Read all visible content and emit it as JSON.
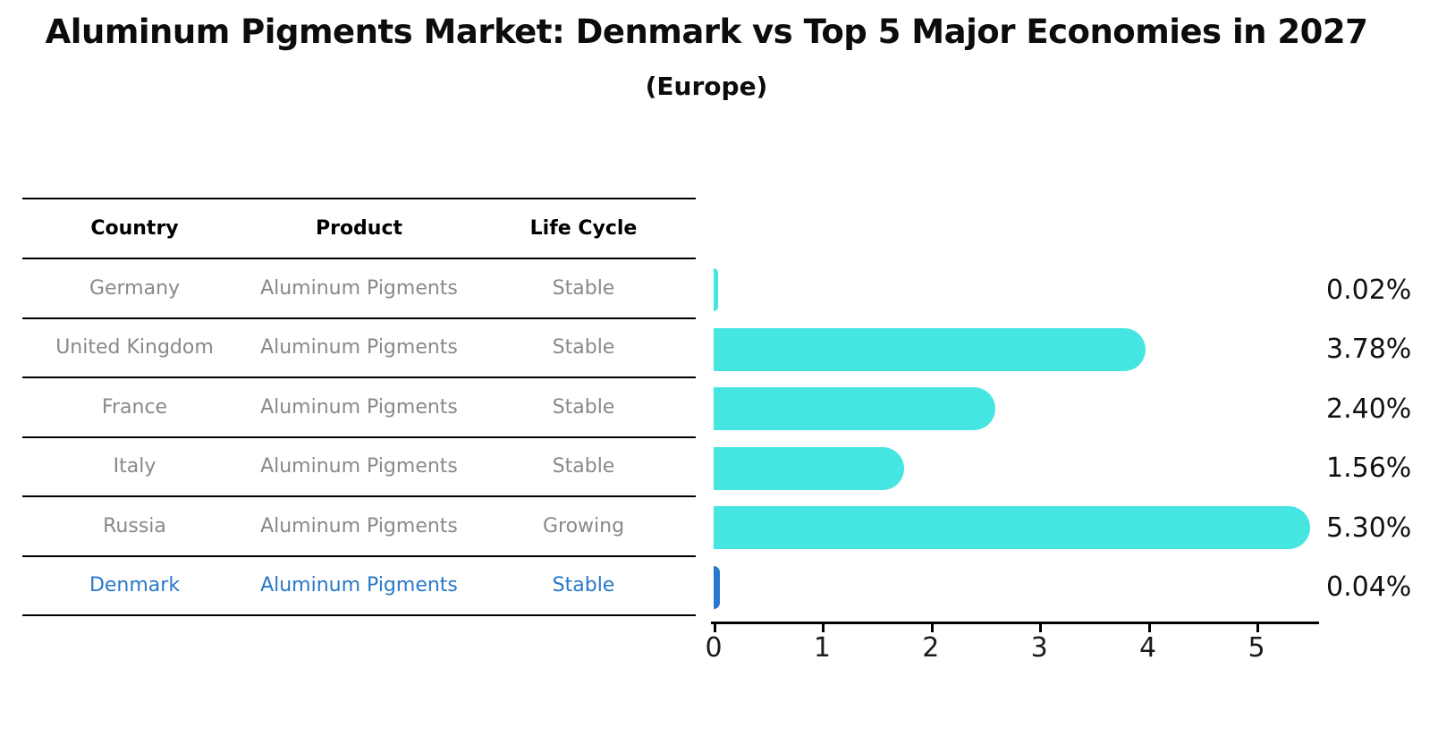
{
  "title": "Aluminum Pigments Market: Denmark vs Top 5 Major Economies in 2027",
  "subtitle": "(Europe)",
  "table": {
    "headers": [
      "Country",
      "Product",
      "Life Cycle"
    ],
    "rows": [
      {
        "country": "Germany",
        "product": "Aluminum Pigments",
        "life_cycle": "Stable",
        "highlight": false
      },
      {
        "country": "United Kingdom",
        "product": "Aluminum Pigments",
        "life_cycle": "Stable",
        "highlight": false
      },
      {
        "country": "France",
        "product": "Aluminum Pigments",
        "life_cycle": "Stable",
        "highlight": false
      },
      {
        "country": "Italy",
        "product": "Aluminum Pigments",
        "life_cycle": "Stable",
        "highlight": false
      },
      {
        "country": "Russia",
        "product": "Aluminum Pigments",
        "life_cycle": "Growing",
        "highlight": false
      },
      {
        "country": "Denmark",
        "product": "Aluminum Pigments",
        "life_cycle": "Stable",
        "highlight": true
      }
    ]
  },
  "chart_data": {
    "type": "bar",
    "orientation": "horizontal",
    "title": "Aluminum Pigments Market: Denmark vs Top 5 Major Economies in 2027 (Europe)",
    "categories": [
      "Germany",
      "United Kingdom",
      "France",
      "Italy",
      "Russia",
      "Denmark"
    ],
    "values": [
      0.02,
      3.78,
      2.4,
      1.56,
      5.3,
      0.04
    ],
    "value_labels": [
      "0.02%",
      "3.78%",
      "2.40%",
      "1.56%",
      "5.30%",
      "0.04%"
    ],
    "x_ticks": [
      "0",
      "1",
      "2",
      "3",
      "4",
      "5"
    ],
    "xlim": [
      0,
      5.57
    ],
    "grid": false,
    "legend": "none",
    "bar_colors": [
      "#45E6E1",
      "#45E6E1",
      "#45E6E1",
      "#45E6E1",
      "#45E6E1",
      "#2878CC"
    ]
  },
  "colors": {
    "bar_default": "#45E6E1",
    "bar_highlight": "#2878CC",
    "highlight_text": "#2878C8",
    "row_text": "#898989",
    "axis": "#000000"
  }
}
